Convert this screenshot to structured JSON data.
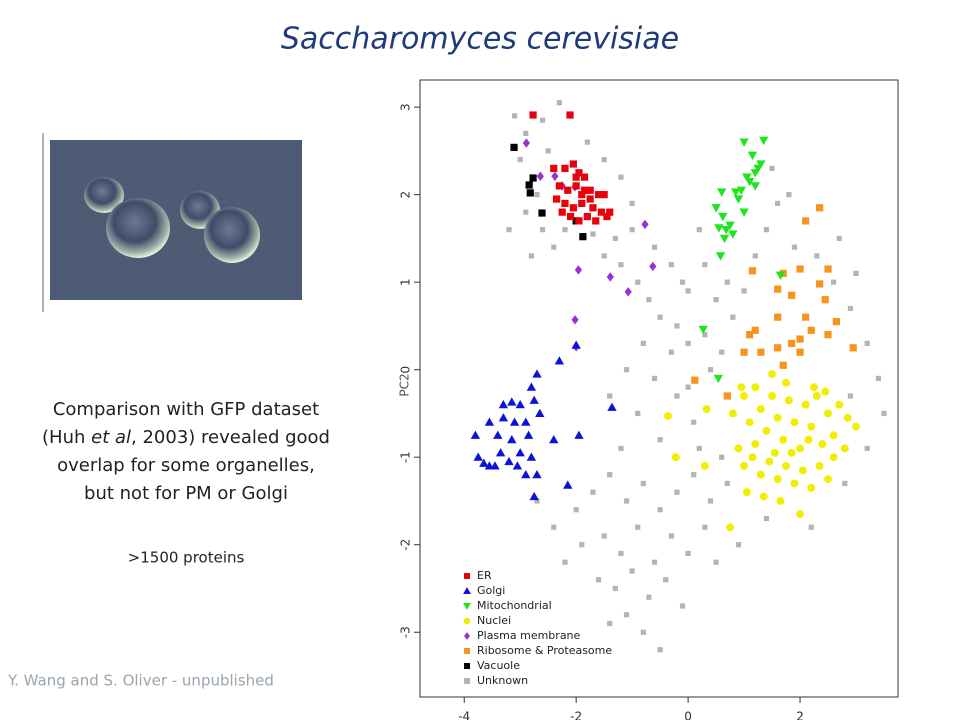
{
  "title": "Saccharomyces cerevisiae",
  "description": [
    [
      "Comparison with GFP dataset"
    ],
    [
      "(Huh ",
      "et al",
      ", 2003) revealed good"
    ],
    [
      "overlap for some organelles,"
    ],
    [
      "but not for PM or Golgi"
    ]
  ],
  "protein_count": ">1500 proteins",
  "credit": "Y. Wang and S. Oliver - unpublished",
  "chart_data": {
    "type": "scatter",
    "ylabel": "PC2",
    "xlim": [
      -4.79,
      3.75
    ],
    "ylim": [
      -3.74,
      3.31
    ],
    "xticks": [
      -4,
      -2,
      0,
      2
    ],
    "yticks": [
      -3,
      -2,
      -1,
      0,
      1,
      2,
      3
    ],
    "legend": "lower left",
    "series": [
      {
        "name": "ER",
        "color": "#e8000b",
        "marker": "square",
        "x": [
          -2.77,
          -2.11,
          -2.2,
          -2.05,
          -1.95,
          -1.85,
          -2.3,
          -2.15,
          -2.0,
          -1.9,
          -1.75,
          -1.6,
          -1.5,
          -2.35,
          -2.2,
          -2.05,
          -1.9,
          -1.7,
          -1.55,
          -1.4,
          -2.1,
          -1.8,
          -1.65,
          -1.45,
          -2.25,
          -1.95,
          -2.0,
          -1.75,
          -2.4,
          -1.85
        ],
        "y": [
          2.91,
          2.91,
          2.3,
          2.35,
          2.25,
          2.2,
          2.1,
          2.05,
          2.1,
          2.0,
          2.05,
          2.0,
          2.0,
          1.95,
          1.9,
          1.85,
          1.9,
          1.85,
          1.8,
          1.8,
          1.75,
          1.75,
          1.7,
          1.75,
          1.8,
          1.7,
          2.2,
          1.95,
          2.3,
          2.05
        ]
      },
      {
        "name": "Golgi",
        "color": "#0a14d6",
        "marker": "triangle",
        "x": [
          -2.0,
          -2.3,
          -2.7,
          -2.8,
          -3.15,
          -3.3,
          -3.0,
          -2.75,
          -3.55,
          -3.3,
          -3.1,
          -2.9,
          -2.65,
          -3.4,
          -3.15,
          -2.85,
          -3.8,
          -3.35,
          -3.0,
          -2.8,
          -3.75,
          -3.65,
          -3.55,
          -3.45,
          -3.2,
          -3.05,
          -2.9,
          -2.7,
          -2.75,
          -2.15,
          -2.4,
          -1.36,
          -1.95
        ],
        "y": [
          0.28,
          0.1,
          -0.05,
          -0.2,
          -0.37,
          -0.4,
          -0.4,
          -0.35,
          -0.6,
          -0.55,
          -0.6,
          -0.6,
          -0.5,
          -0.75,
          -0.8,
          -0.75,
          -0.75,
          -0.95,
          -0.95,
          -1.0,
          -1.0,
          -1.07,
          -1.1,
          -1.1,
          -1.05,
          -1.1,
          -1.2,
          -1.2,
          -1.45,
          -1.32,
          -0.8,
          -0.43,
          -0.75
        ]
      },
      {
        "name": "Mitochondrial",
        "color": "#1ee61e",
        "marker": "triangle-down",
        "x": [
          1.0,
          1.35,
          1.15,
          1.3,
          1.2,
          1.1,
          1.05,
          0.6,
          0.85,
          0.95,
          0.5,
          0.62,
          0.55,
          0.68,
          0.8,
          0.65,
          0.58,
          1.0,
          1.25,
          0.27,
          0.54,
          1.65,
          0.9,
          0.75,
          1.2
        ],
        "y": [
          2.6,
          2.62,
          2.45,
          2.35,
          2.25,
          2.15,
          2.2,
          2.03,
          2.03,
          2.05,
          1.85,
          1.75,
          1.62,
          1.6,
          1.55,
          1.5,
          1.3,
          1.8,
          2.3,
          0.46,
          -0.1,
          1.08,
          1.95,
          1.65,
          2.1
        ]
      },
      {
        "name": "Nuclei",
        "color": "#f2ee00",
        "marker": "circle",
        "x": [
          -0.36,
          -0.22,
          0.3,
          0.33,
          0.75,
          2.0,
          0.8,
          1.0,
          1.1,
          1.2,
          1.3,
          1.4,
          1.5,
          1.6,
          1.7,
          1.8,
          1.9,
          2.0,
          2.1,
          2.2,
          2.3,
          2.4,
          2.5,
          2.6,
          2.7,
          2.8,
          3.0,
          0.9,
          1.0,
          1.15,
          1.3,
          1.45,
          1.6,
          1.75,
          1.9,
          2.05,
          2.2,
          2.35,
          2.5,
          1.2,
          1.55,
          1.85,
          2.15,
          1.35,
          1.65,
          2.25,
          2.6,
          0.95,
          1.75,
          2.45,
          1.05,
          2.85,
          1.5
        ],
        "y": [
          -0.53,
          -1.0,
          -1.1,
          -0.45,
          -1.8,
          -1.65,
          -0.5,
          -0.3,
          -0.6,
          -0.2,
          -0.45,
          -0.7,
          -0.3,
          -0.55,
          -0.8,
          -0.35,
          -0.6,
          -0.9,
          -0.4,
          -0.65,
          -0.3,
          -0.85,
          -0.5,
          -0.75,
          -0.4,
          -0.9,
          -0.65,
          -0.9,
          -1.1,
          -1.0,
          -1.2,
          -1.05,
          -1.25,
          -1.1,
          -1.3,
          -1.15,
          -1.35,
          -1.1,
          -1.25,
          -0.85,
          -0.95,
          -0.95,
          -0.8,
          -1.45,
          -1.5,
          -0.2,
          -1.0,
          -0.2,
          -0.15,
          -0.25,
          -1.4,
          -0.55,
          -0.05
        ]
      },
      {
        "name": "Plasma membrane",
        "color": "#9b30d9",
        "marker": "diamond",
        "x": [
          -2.89,
          -2.64,
          -2.38,
          -2.02,
          -2.25,
          -0.77,
          -1.96,
          -1.39,
          -0.63,
          -1.07,
          -2.02,
          -2.0
        ],
        "y": [
          2.59,
          2.21,
          2.21,
          2.09,
          2.1,
          1.66,
          1.14,
          1.06,
          1.18,
          0.89,
          0.57,
          0.26
        ]
      },
      {
        "name": "Ribosome & Proteasome",
        "color": "#f7941d",
        "marker": "square",
        "x": [
          2.35,
          2.1,
          1.15,
          1.7,
          2.0,
          2.5,
          1.6,
          1.85,
          2.35,
          2.45,
          1.6,
          2.1,
          2.65,
          1.2,
          1.1,
          1.6,
          1.85,
          2.0,
          2.2,
          2.0,
          1.3,
          1.0,
          2.95,
          1.7,
          0.12,
          0.7,
          2.5
        ],
        "y": [
          1.85,
          1.7,
          1.13,
          1.1,
          1.15,
          1.15,
          0.92,
          0.85,
          0.98,
          0.8,
          0.6,
          0.6,
          0.55,
          0.45,
          0.4,
          0.25,
          0.3,
          0.35,
          0.45,
          0.2,
          0.2,
          0.2,
          0.25,
          0.05,
          -0.12,
          -0.3,
          0.4
        ]
      },
      {
        "name": "Vacuole",
        "color": "#000000",
        "marker": "square",
        "x": [
          -3.11,
          -2.77,
          -2.84,
          -2.82,
          -2.61,
          -2.0,
          -1.88
        ],
        "y": [
          2.54,
          2.19,
          2.11,
          2.02,
          1.79,
          1.7,
          1.52
        ]
      },
      {
        "name": "Unknown",
        "color": "#b4b4b4",
        "marker": "square",
        "x": [
          -3.1,
          -2.9,
          -2.6,
          -2.3,
          -3.0,
          -2.5,
          -2.7,
          -2.9,
          -3.2,
          -2.6,
          -2.4,
          -2.2,
          -2.8,
          -1.7,
          -1.3,
          -1.0,
          -1.5,
          -1.2,
          -0.9,
          -0.7,
          -1.8,
          -1.5,
          -1.2,
          -1.0,
          -0.6,
          -0.3,
          -0.5,
          -0.2,
          0.0,
          0.3,
          0.5,
          -0.3,
          0.0,
          0.3,
          -0.8,
          -1.1,
          -0.6,
          -0.2,
          0.1,
          0.4,
          -1.4,
          -0.9,
          -0.5,
          -1.2,
          0.0,
          0.6,
          0.8,
          0.2,
          -2.0,
          -1.7,
          -1.4,
          -1.1,
          -0.8,
          -0.5,
          -0.2,
          0.1,
          0.4,
          0.7,
          -1.9,
          -1.5,
          -1.2,
          -0.9,
          -0.6,
          -0.3,
          0.0,
          0.3,
          -1.6,
          -1.3,
          -1.0,
          -0.7,
          -0.4,
          -0.1,
          -1.1,
          -0.8,
          -1.4,
          -2.2,
          -2.4,
          -2.7,
          0.5,
          -0.5,
          1.0,
          1.4,
          1.6,
          1.9,
          2.3,
          2.6,
          2.9,
          3.2,
          3.4,
          3.5,
          2.9,
          3.2,
          2.8,
          1.2,
          0.7,
          0.2,
          -0.1,
          2.7,
          3.0,
          2.2,
          1.4,
          0.9,
          0.6,
          1.8,
          1.5
        ],
        "y": [
          2.9,
          2.7,
          2.85,
          3.05,
          2.4,
          2.5,
          2.0,
          1.8,
          1.6,
          1.6,
          1.4,
          1.6,
          1.3,
          1.55,
          1.5,
          1.6,
          1.3,
          1.2,
          1.0,
          0.8,
          2.6,
          2.4,
          2.2,
          1.9,
          1.4,
          1.2,
          0.6,
          0.5,
          0.9,
          1.2,
          0.8,
          0.2,
          0.3,
          0.4,
          0.3,
          0.0,
          -0.1,
          -0.3,
          -0.6,
          0.0,
          -0.3,
          -0.5,
          -0.8,
          -0.9,
          -0.2,
          0.2,
          0.6,
          -0.9,
          -1.6,
          -1.4,
          -1.2,
          -1.5,
          -1.3,
          -1.6,
          -1.4,
          -1.2,
          -1.5,
          -1.3,
          -2.0,
          -1.9,
          -2.1,
          -1.8,
          -2.2,
          -1.9,
          -2.1,
          -1.8,
          -2.4,
          -2.5,
          -2.3,
          -2.6,
          -2.4,
          -2.7,
          -2.8,
          -3.0,
          -2.9,
          -2.2,
          -1.8,
          -1.5,
          -2.2,
          -3.2,
          0.9,
          1.6,
          1.9,
          1.4,
          1.3,
          1.0,
          0.7,
          0.3,
          -0.1,
          -0.5,
          -0.3,
          -0.9,
          -1.3,
          1.3,
          1.0,
          1.6,
          1.0,
          1.5,
          1.1,
          -1.8,
          -1.7,
          -2.0,
          -1.0,
          2.0,
          2.3
        ]
      }
    ]
  }
}
